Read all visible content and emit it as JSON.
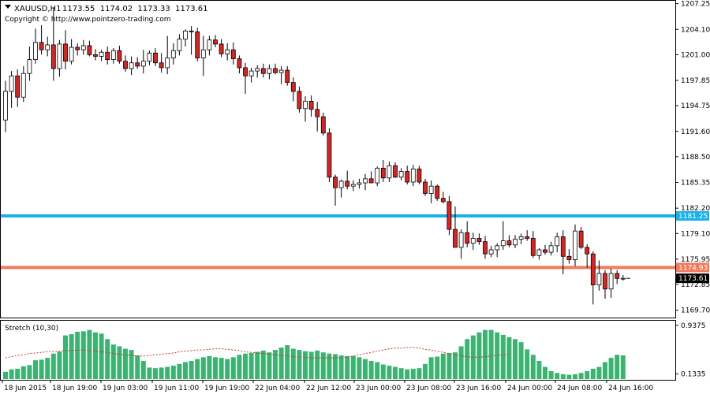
{
  "header": {
    "symbol": "XAUUSD,H1",
    "ohlc": "1173.55  1174.02  1173.33  1173.61",
    "copyright": "Copyright © http://www.pointzero-trading.com"
  },
  "indicator": {
    "label": "Stretch (10,30)"
  },
  "colors": {
    "background": "#ffffff",
    "bear_body": "#dd2222",
    "bull_body": "#ffffff",
    "candle_outline": "#000000",
    "level_blue": "#19b2e8",
    "level_orange": "#f07a5c",
    "histogram": "#3cb371",
    "signal_line": "#c0392b",
    "price_tag": "#000000"
  },
  "chart_data": [
    {
      "type": "candlestick",
      "title": "XAUUSD,H1",
      "ylim": [
        1168.8,
        1207.6
      ],
      "y_ticks": [
        "1207.25",
        "1204.10",
        "1201.00",
        "1197.85",
        "1194.75",
        "1191.60",
        "1188.50",
        "1185.35",
        "1182.20",
        "1179.10",
        "1175.95",
        "1172.85",
        "1169.70"
      ],
      "x_labels": [
        "18 Jun 2015",
        "18 Jun 19:00",
        "19 Jun 03:00",
        "19 Jun 11:00",
        "19 Jun 19:00",
        "22 Jun 04:00",
        "22 Jun 12:00",
        "23 Jun 00:00",
        "23 Jun 08:00",
        "23 Jun 16:00",
        "24 Jun 00:00",
        "24 Jun 08:00",
        "24 Jun 16:00"
      ],
      "horizontal_levels": [
        {
          "value": "1181.25",
          "color": "#19b2e8"
        },
        {
          "value": "1174.93",
          "color": "#f07a5c"
        }
      ],
      "current_price": "1173.61",
      "candles": [
        {
          "o": 1193.0,
          "h": 1197.8,
          "l": 1191.5,
          "c": 1196.5
        },
        {
          "o": 1196.5,
          "h": 1199.0,
          "l": 1194.5,
          "c": 1198.4
        },
        {
          "o": 1198.4,
          "h": 1199.2,
          "l": 1194.6,
          "c": 1195.8
        },
        {
          "o": 1195.8,
          "h": 1199.6,
          "l": 1195.2,
          "c": 1198.7
        },
        {
          "o": 1198.7,
          "h": 1202.0,
          "l": 1197.8,
          "c": 1200.4
        },
        {
          "o": 1200.4,
          "h": 1204.2,
          "l": 1199.9,
          "c": 1202.5
        },
        {
          "o": 1202.5,
          "h": 1204.6,
          "l": 1201.0,
          "c": 1201.6
        },
        {
          "o": 1201.6,
          "h": 1203.2,
          "l": 1200.8,
          "c": 1202.2
        },
        {
          "o": 1202.2,
          "h": 1206.8,
          "l": 1197.8,
          "c": 1199.3
        },
        {
          "o": 1199.3,
          "h": 1202.8,
          "l": 1198.3,
          "c": 1202.3
        },
        {
          "o": 1202.3,
          "h": 1204.0,
          "l": 1199.2,
          "c": 1200.2
        },
        {
          "o": 1200.2,
          "h": 1202.9,
          "l": 1199.8,
          "c": 1201.9
        },
        {
          "o": 1201.9,
          "h": 1202.4,
          "l": 1200.9,
          "c": 1201.6
        },
        {
          "o": 1201.6,
          "h": 1202.8,
          "l": 1201.0,
          "c": 1202.1
        },
        {
          "o": 1202.1,
          "h": 1202.7,
          "l": 1200.8,
          "c": 1201.0
        },
        {
          "o": 1201.0,
          "h": 1201.7,
          "l": 1200.3,
          "c": 1200.8
        },
        {
          "o": 1200.8,
          "h": 1201.6,
          "l": 1200.2,
          "c": 1201.3
        },
        {
          "o": 1201.3,
          "h": 1202.0,
          "l": 1199.8,
          "c": 1200.4
        },
        {
          "o": 1200.4,
          "h": 1201.8,
          "l": 1199.9,
          "c": 1201.5
        },
        {
          "o": 1201.5,
          "h": 1202.1,
          "l": 1199.9,
          "c": 1200.2
        },
        {
          "o": 1200.2,
          "h": 1200.9,
          "l": 1198.9,
          "c": 1199.3
        },
        {
          "o": 1199.3,
          "h": 1200.8,
          "l": 1198.5,
          "c": 1200.0
        },
        {
          "o": 1200.0,
          "h": 1200.7,
          "l": 1199.3,
          "c": 1199.6
        },
        {
          "o": 1199.6,
          "h": 1201.6,
          "l": 1198.7,
          "c": 1200.2
        },
        {
          "o": 1200.2,
          "h": 1201.5,
          "l": 1199.7,
          "c": 1201.2
        },
        {
          "o": 1201.2,
          "h": 1201.8,
          "l": 1199.6,
          "c": 1200.0
        },
        {
          "o": 1200.0,
          "h": 1201.2,
          "l": 1198.8,
          "c": 1199.4
        },
        {
          "o": 1199.4,
          "h": 1203.3,
          "l": 1198.6,
          "c": 1200.6
        },
        {
          "o": 1200.6,
          "h": 1202.4,
          "l": 1199.8,
          "c": 1201.5
        },
        {
          "o": 1201.5,
          "h": 1203.5,
          "l": 1200.9,
          "c": 1202.9
        },
        {
          "o": 1202.9,
          "h": 1204.1,
          "l": 1202.0,
          "c": 1203.9
        },
        {
          "o": 1203.9,
          "h": 1204.5,
          "l": 1201.0,
          "c": 1203.8
        },
        {
          "o": 1203.8,
          "h": 1204.3,
          "l": 1200.2,
          "c": 1200.6
        },
        {
          "o": 1200.6,
          "h": 1203.3,
          "l": 1198.4,
          "c": 1201.6
        },
        {
          "o": 1201.6,
          "h": 1203.3,
          "l": 1200.9,
          "c": 1202.8
        },
        {
          "o": 1202.8,
          "h": 1203.4,
          "l": 1201.9,
          "c": 1202.3
        },
        {
          "o": 1202.3,
          "h": 1202.9,
          "l": 1200.7,
          "c": 1201.1
        },
        {
          "o": 1201.1,
          "h": 1202.4,
          "l": 1200.3,
          "c": 1201.6
        },
        {
          "o": 1201.6,
          "h": 1202.5,
          "l": 1199.8,
          "c": 1200.5
        },
        {
          "o": 1200.5,
          "h": 1200.9,
          "l": 1198.7,
          "c": 1199.4
        },
        {
          "o": 1199.4,
          "h": 1200.0,
          "l": 1196.2,
          "c": 1198.4
        },
        {
          "o": 1198.4,
          "h": 1199.4,
          "l": 1197.6,
          "c": 1199.0
        },
        {
          "o": 1199.0,
          "h": 1199.7,
          "l": 1198.2,
          "c": 1199.3
        },
        {
          "o": 1199.3,
          "h": 1199.9,
          "l": 1198.2,
          "c": 1198.7
        },
        {
          "o": 1198.7,
          "h": 1199.8,
          "l": 1198.0,
          "c": 1199.3
        },
        {
          "o": 1199.3,
          "h": 1199.9,
          "l": 1198.6,
          "c": 1198.8
        },
        {
          "o": 1198.8,
          "h": 1199.6,
          "l": 1197.4,
          "c": 1199.1
        },
        {
          "o": 1199.1,
          "h": 1199.6,
          "l": 1197.2,
          "c": 1197.6
        },
        {
          "o": 1197.6,
          "h": 1198.2,
          "l": 1195.3,
          "c": 1196.5
        },
        {
          "o": 1196.5,
          "h": 1197.1,
          "l": 1193.9,
          "c": 1194.4
        },
        {
          "o": 1194.4,
          "h": 1195.9,
          "l": 1192.8,
          "c": 1195.3
        },
        {
          "o": 1195.3,
          "h": 1196.0,
          "l": 1193.4,
          "c": 1194.3
        },
        {
          "o": 1194.3,
          "h": 1195.2,
          "l": 1191.6,
          "c": 1193.4
        },
        {
          "o": 1193.4,
          "h": 1193.9,
          "l": 1191.1,
          "c": 1191.4
        },
        {
          "o": 1191.4,
          "h": 1192.0,
          "l": 1185.4,
          "c": 1186.0
        },
        {
          "o": 1186.0,
          "h": 1186.3,
          "l": 1182.5,
          "c": 1184.7
        },
        {
          "o": 1184.7,
          "h": 1185.7,
          "l": 1183.5,
          "c": 1185.5
        },
        {
          "o": 1185.5,
          "h": 1186.8,
          "l": 1184.5,
          "c": 1184.9
        },
        {
          "o": 1184.9,
          "h": 1185.6,
          "l": 1184.3,
          "c": 1185.1
        },
        {
          "o": 1185.1,
          "h": 1185.8,
          "l": 1184.6,
          "c": 1185.3
        },
        {
          "o": 1185.3,
          "h": 1186.4,
          "l": 1184.4,
          "c": 1185.8
        },
        {
          "o": 1185.8,
          "h": 1186.7,
          "l": 1185.3,
          "c": 1185.3
        },
        {
          "o": 1185.3,
          "h": 1187.3,
          "l": 1184.9,
          "c": 1187.1
        },
        {
          "o": 1187.1,
          "h": 1188.1,
          "l": 1185.4,
          "c": 1185.9
        },
        {
          "o": 1185.9,
          "h": 1187.9,
          "l": 1185.4,
          "c": 1187.4
        },
        {
          "o": 1187.4,
          "h": 1187.8,
          "l": 1185.9,
          "c": 1186.0
        },
        {
          "o": 1186.0,
          "h": 1187.1,
          "l": 1185.6,
          "c": 1186.7
        },
        {
          "o": 1186.7,
          "h": 1187.4,
          "l": 1185.1,
          "c": 1185.4
        },
        {
          "o": 1185.4,
          "h": 1187.5,
          "l": 1184.9,
          "c": 1187.0
        },
        {
          "o": 1187.0,
          "h": 1187.4,
          "l": 1185.1,
          "c": 1185.4
        },
        {
          "o": 1185.4,
          "h": 1185.8,
          "l": 1183.7,
          "c": 1184.0
        },
        {
          "o": 1184.0,
          "h": 1185.6,
          "l": 1182.8,
          "c": 1184.9
        },
        {
          "o": 1184.9,
          "h": 1185.1,
          "l": 1183.1,
          "c": 1183.4
        },
        {
          "o": 1183.4,
          "h": 1184.2,
          "l": 1182.8,
          "c": 1183.0
        },
        {
          "o": 1183.0,
          "h": 1183.7,
          "l": 1178.9,
          "c": 1179.6
        },
        {
          "o": 1179.6,
          "h": 1182.4,
          "l": 1177.6,
          "c": 1177.4
        },
        {
          "o": 1177.4,
          "h": 1179.6,
          "l": 1176.0,
          "c": 1179.2
        },
        {
          "o": 1179.2,
          "h": 1180.6,
          "l": 1177.4,
          "c": 1177.9
        },
        {
          "o": 1177.9,
          "h": 1179.2,
          "l": 1177.1,
          "c": 1178.5
        },
        {
          "o": 1178.5,
          "h": 1179.1,
          "l": 1177.7,
          "c": 1178.1
        },
        {
          "o": 1178.1,
          "h": 1178.8,
          "l": 1176.0,
          "c": 1176.6
        },
        {
          "o": 1176.6,
          "h": 1177.6,
          "l": 1176.2,
          "c": 1177.1
        },
        {
          "o": 1177.1,
          "h": 1177.9,
          "l": 1176.2,
          "c": 1177.6
        },
        {
          "o": 1177.6,
          "h": 1180.6,
          "l": 1177.1,
          "c": 1178.2
        },
        {
          "o": 1178.2,
          "h": 1178.9,
          "l": 1177.4,
          "c": 1177.7
        },
        {
          "o": 1177.7,
          "h": 1178.9,
          "l": 1177.3,
          "c": 1178.4
        },
        {
          "o": 1178.4,
          "h": 1179.1,
          "l": 1177.8,
          "c": 1178.7
        },
        {
          "o": 1178.7,
          "h": 1179.5,
          "l": 1178.2,
          "c": 1178.5
        },
        {
          "o": 1178.5,
          "h": 1179.4,
          "l": 1176.1,
          "c": 1176.4
        },
        {
          "o": 1176.4,
          "h": 1177.3,
          "l": 1175.9,
          "c": 1177.1
        },
        {
          "o": 1177.1,
          "h": 1177.7,
          "l": 1176.5,
          "c": 1176.8
        },
        {
          "o": 1176.8,
          "h": 1178.1,
          "l": 1176.4,
          "c": 1177.6
        },
        {
          "o": 1177.6,
          "h": 1179.2,
          "l": 1176.8,
          "c": 1178.7
        },
        {
          "o": 1178.7,
          "h": 1179.5,
          "l": 1174.1,
          "c": 1176.3
        },
        {
          "o": 1176.3,
          "h": 1177.2,
          "l": 1175.4,
          "c": 1175.9
        },
        {
          "o": 1175.9,
          "h": 1180.2,
          "l": 1175.1,
          "c": 1179.4
        },
        {
          "o": 1179.4,
          "h": 1179.9,
          "l": 1177.2,
          "c": 1177.4
        },
        {
          "o": 1177.4,
          "h": 1177.8,
          "l": 1174.9,
          "c": 1176.6
        },
        {
          "o": 1176.6,
          "h": 1176.9,
          "l": 1170.4,
          "c": 1172.8
        },
        {
          "o": 1172.8,
          "h": 1175.8,
          "l": 1172.1,
          "c": 1174.2
        },
        {
          "o": 1174.2,
          "h": 1174.6,
          "l": 1171.1,
          "c": 1172.3
        },
        {
          "o": 1172.3,
          "h": 1174.8,
          "l": 1171.2,
          "c": 1174.2
        },
        {
          "o": 1174.2,
          "h": 1174.6,
          "l": 1172.9,
          "c": 1173.6
        },
        {
          "o": 1173.55,
          "h": 1174.02,
          "l": 1173.33,
          "c": 1173.61
        }
      ]
    },
    {
      "type": "bar",
      "title": "Stretch (10,30)",
      "ylim": [
        0.05,
        1.0
      ],
      "y_ticks": [
        "0.9375",
        "0.1335"
      ],
      "values": [
        0.17,
        0.21,
        0.22,
        0.26,
        0.28,
        0.36,
        0.37,
        0.4,
        0.47,
        0.5,
        0.77,
        0.79,
        0.83,
        0.84,
        0.86,
        0.82,
        0.8,
        0.71,
        0.62,
        0.59,
        0.55,
        0.53,
        0.44,
        0.35,
        0.24,
        0.23,
        0.24,
        0.25,
        0.27,
        0.3,
        0.33,
        0.35,
        0.38,
        0.41,
        0.43,
        0.41,
        0.4,
        0.38,
        0.41,
        0.45,
        0.47,
        0.48,
        0.5,
        0.52,
        0.49,
        0.53,
        0.57,
        0.61,
        0.55,
        0.53,
        0.51,
        0.5,
        0.52,
        0.49,
        0.47,
        0.46,
        0.44,
        0.43,
        0.43,
        0.41,
        0.38,
        0.35,
        0.33,
        0.29,
        0.27,
        0.25,
        0.23,
        0.21,
        0.22,
        0.23,
        0.3,
        0.41,
        0.42,
        0.47,
        0.48,
        0.49,
        0.59,
        0.71,
        0.77,
        0.82,
        0.86,
        0.86,
        0.82,
        0.78,
        0.74,
        0.71,
        0.66,
        0.54,
        0.45,
        0.35,
        0.25,
        0.18,
        0.15,
        0.13,
        0.12,
        0.13,
        0.15,
        0.18,
        0.22,
        0.25,
        0.33,
        0.4,
        0.45,
        0.44
      ],
      "signal": [
        0.4,
        0.42,
        0.44,
        0.45,
        0.47,
        0.48,
        0.49,
        0.5,
        0.51,
        0.51,
        0.52,
        0.52,
        0.53,
        0.53,
        0.52,
        0.51,
        0.5,
        0.49,
        0.47,
        0.46,
        0.45,
        0.44,
        0.43,
        0.43,
        0.44,
        0.45,
        0.46,
        0.47,
        0.48,
        0.5,
        0.51,
        0.52,
        0.53,
        0.53,
        0.54,
        0.55,
        0.55,
        0.54,
        0.53,
        0.52,
        0.5,
        0.49,
        0.48,
        0.47,
        0.46,
        0.45,
        0.44,
        0.43,
        0.42,
        0.41,
        0.41,
        0.4,
        0.4,
        0.4,
        0.4,
        0.4,
        0.4,
        0.41,
        0.43,
        0.45,
        0.47,
        0.49,
        0.51,
        0.53,
        0.55,
        0.56,
        0.56,
        0.57,
        0.57,
        0.56,
        0.54,
        0.53,
        0.51,
        0.49,
        0.47,
        0.45,
        0.43,
        0.42,
        0.41,
        0.41,
        0.42,
        0.43,
        0.44,
        0.45,
        0.46
      ]
    }
  ]
}
